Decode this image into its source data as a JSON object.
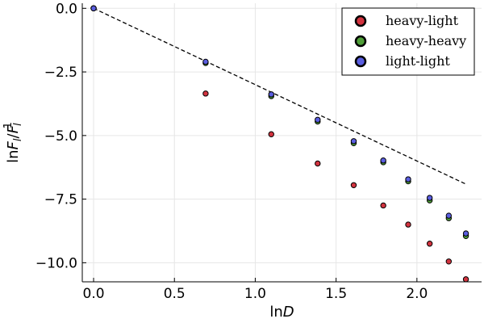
{
  "chart_data": {
    "type": "scatter",
    "title": "",
    "xlabel": "lnD",
    "ylabel": "lnF_l/F_l^1",
    "xlim": [
      -0.07,
      2.4
    ],
    "ylim": [
      -10.75,
      0.2
    ],
    "xticks": [
      0.0,
      0.5,
      1.0,
      1.5,
      2.0
    ],
    "xtick_labels": [
      "0.0",
      "0.5",
      "1.0",
      "1.5",
      "2.0"
    ],
    "yticks": [
      0.0,
      -2.5,
      -5.0,
      -7.5,
      -10.0
    ],
    "ytick_labels": [
      "0.0",
      "−2.5",
      "−5.0",
      "−7.5",
      "−10.0"
    ],
    "grid": true,
    "legend_position": "top-right",
    "series": [
      {
        "name": "heavy-light",
        "color": "#d2333f",
        "x": [
          0.0,
          0.693,
          1.099,
          1.386,
          1.609,
          1.792,
          1.946,
          2.079,
          2.197,
          2.303
        ],
        "y": [
          0.0,
          -3.35,
          -4.95,
          -6.1,
          -6.95,
          -7.75,
          -8.5,
          -9.25,
          -9.95,
          -10.65
        ]
      },
      {
        "name": "heavy-heavy",
        "color": "#4f9e38",
        "x": [
          0.0,
          0.693,
          1.099,
          1.386,
          1.609,
          1.792,
          1.946,
          2.079,
          2.197,
          2.303
        ],
        "y": [
          0.0,
          -2.15,
          -3.45,
          -4.45,
          -5.3,
          -6.05,
          -6.8,
          -7.55,
          -8.25,
          -8.95
        ]
      },
      {
        "name": "light-light",
        "color": "#5a5ee0",
        "x": [
          0.0,
          0.693,
          1.099,
          1.386,
          1.609,
          1.792,
          1.946,
          2.079,
          2.197,
          2.303
        ],
        "y": [
          0.0,
          -2.1,
          -3.38,
          -4.38,
          -5.22,
          -5.98,
          -6.72,
          -7.45,
          -8.15,
          -8.85
        ]
      }
    ],
    "reference_line": {
      "style": "dashed",
      "color": "#000000",
      "x": [
        0.0,
        2.303
      ],
      "y": [
        0.0,
        -6.91
      ]
    }
  }
}
